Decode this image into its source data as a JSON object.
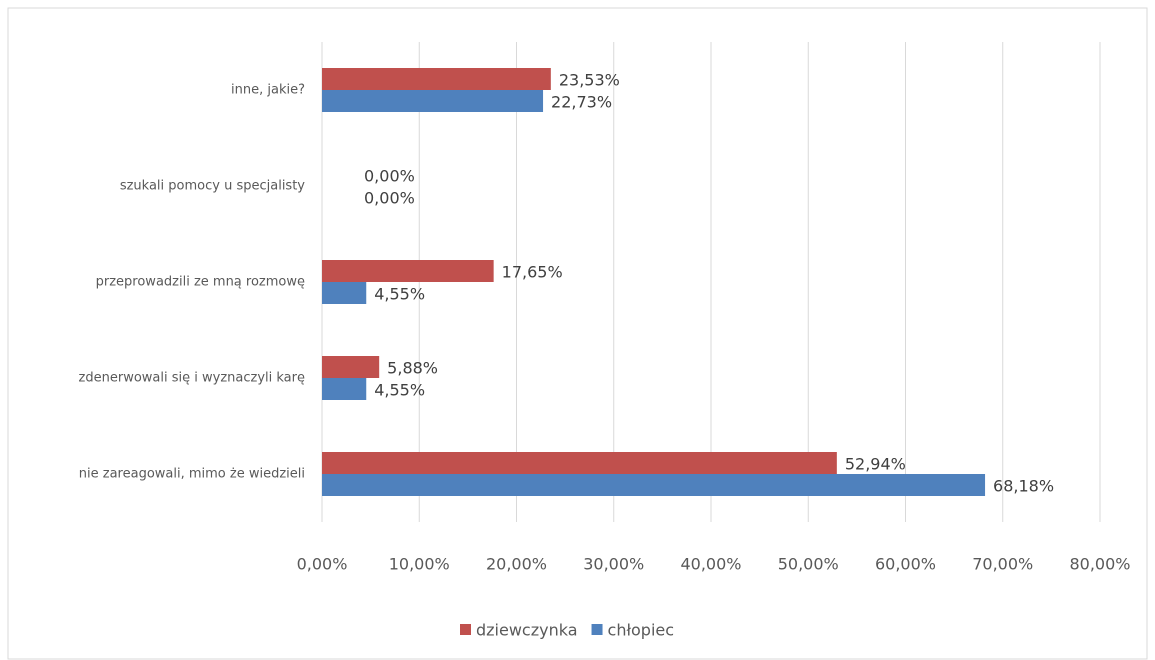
{
  "chart_data": {
    "type": "bar",
    "orientation": "horizontal",
    "categories": [
      "inne, jakie?",
      "szukali pomocy u specjalisty",
      "przeprowadzili ze mną rozmowę",
      "zdenerwowali się i wyznaczyli karę",
      "nie zareagowali, mimo że wiedzieli"
    ],
    "series": [
      {
        "name": "dziewczynka",
        "color": "#c0504d",
        "values": [
          23.53,
          0,
          17.65,
          5.88,
          52.94
        ],
        "value_labels": [
          "23,53%",
          "0,00%",
          "17,65%",
          "5,88%",
          "52,94%"
        ]
      },
      {
        "name": "chłopiec",
        "color": "#4f81bd",
        "values": [
          22.73,
          0,
          4.55,
          4.55,
          68.18
        ],
        "value_labels": [
          "22,73%",
          "0,00%",
          "4,55%",
          "4,55%",
          "68,18%"
        ]
      }
    ],
    "xlim": [
      0,
      80
    ],
    "xticks": [
      {
        "value": 0,
        "label": "0,00%"
      },
      {
        "value": 10,
        "label": "10,00%"
      },
      {
        "value": 20,
        "label": "20,00%"
      },
      {
        "value": 30,
        "label": "30,00%"
      },
      {
        "value": 40,
        "label": "40,00%"
      },
      {
        "value": 50,
        "label": "50,00%"
      },
      {
        "value": 60,
        "label": "60,00%"
      },
      {
        "value": 70,
        "label": "70,00%"
      },
      {
        "value": 80,
        "label": "80,00%"
      }
    ],
    "grid": true,
    "legend": "bottom"
  }
}
